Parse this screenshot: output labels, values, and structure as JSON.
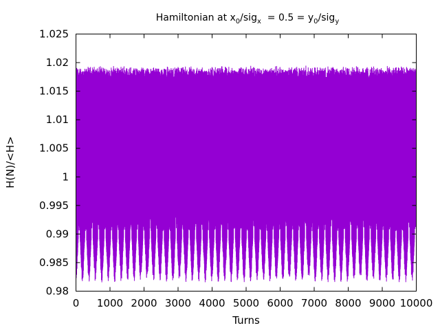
{
  "chart_data": {
    "type": "line",
    "title": {
      "prefix": "Hamiltonian at x",
      "sub1": "0",
      "mid1": "/sig",
      "sub2": "x",
      "mid2": "  = 0.5 = y",
      "sub3": "0",
      "mid3": "/sig",
      "sub4": "y"
    },
    "xlabel": "Turns",
    "ylabel": "H(N)/<H>",
    "xlim": [
      0,
      10000
    ],
    "ylim": [
      0.98,
      1.025
    ],
    "x_ticks": [
      "0",
      "1000",
      "2000",
      "3000",
      "4000",
      "5000",
      "6000",
      "7000",
      "8000",
      "9000",
      "10000"
    ],
    "y_ticks": [
      "0.98",
      "0.985",
      "0.99",
      "0.995",
      "1",
      "1.005",
      "1.01",
      "1.015",
      "1.02",
      "1.025"
    ],
    "grid": false,
    "series": [
      {
        "color": "#9400d3",
        "turns": 10000,
        "band_max": 1.0195,
        "band_min": 0.9815,
        "dense_upper": 1.017,
        "dense_lower": 0.9935,
        "outer_dip_level": 0.9905,
        "modulation_period_turns": 190
      }
    ]
  },
  "colors": {
    "series": "#9400d3",
    "axes": "#000000",
    "background": "#ffffff"
  }
}
